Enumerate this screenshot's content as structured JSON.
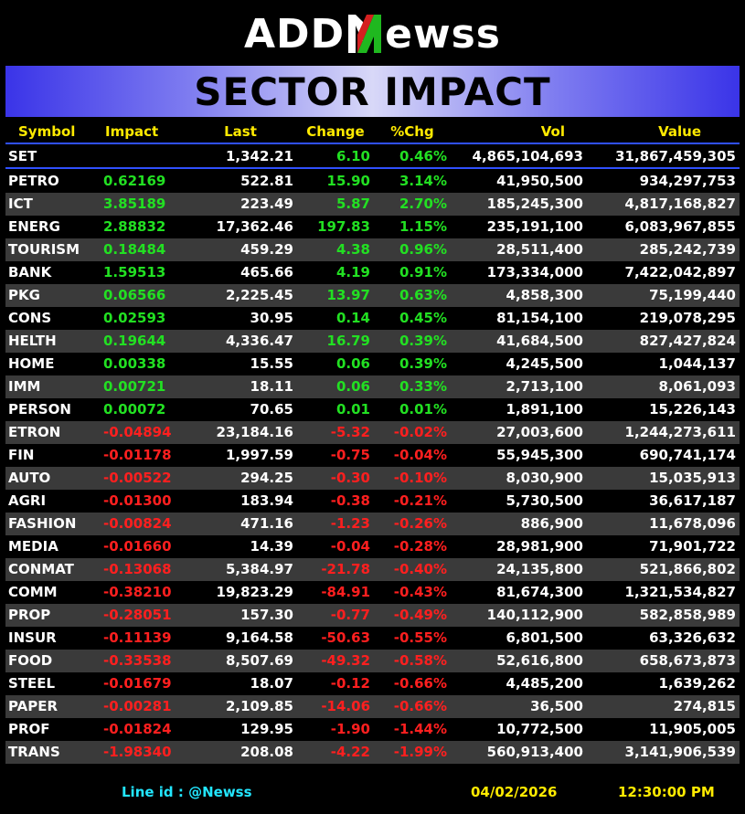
{
  "brand": {
    "logo_prefix": "ADD",
    "logo_suffix": "ewss",
    "logo_full": "ADDNewss"
  },
  "title": "SECTOR IMPACT",
  "columns": {
    "symbol": "Symbol",
    "impact": "Impact",
    "last": "Last",
    "change": "Change",
    "pct": "%Chg",
    "vol": "Vol",
    "value": "Value"
  },
  "index_row": {
    "symbol": "SET",
    "impact": "",
    "last": "1,342.21",
    "change": "6.10",
    "pct": "0.46%",
    "vol": "4,865,104,693",
    "value": "31,867,459,305",
    "direction": "up"
  },
  "sectors": [
    {
      "symbol": "PETRO",
      "impact": "0.62169",
      "last": "522.81",
      "change": "15.90",
      "pct": "3.14%",
      "vol": "41,950,500",
      "value": "934,297,753",
      "direction": "up"
    },
    {
      "symbol": "ICT",
      "impact": "3.85189",
      "last": "223.49",
      "change": "5.87",
      "pct": "2.70%",
      "vol": "185,245,300",
      "value": "4,817,168,827",
      "direction": "up"
    },
    {
      "symbol": "ENERG",
      "impact": "2.88832",
      "last": "17,362.46",
      "change": "197.83",
      "pct": "1.15%",
      "vol": "235,191,100",
      "value": "6,083,967,855",
      "direction": "up"
    },
    {
      "symbol": "TOURISM",
      "impact": "0.18484",
      "last": "459.29",
      "change": "4.38",
      "pct": "0.96%",
      "vol": "28,511,400",
      "value": "285,242,739",
      "direction": "up"
    },
    {
      "symbol": "BANK",
      "impact": "1.59513",
      "last": "465.66",
      "change": "4.19",
      "pct": "0.91%",
      "vol": "173,334,000",
      "value": "7,422,042,897",
      "direction": "up"
    },
    {
      "symbol": "PKG",
      "impact": "0.06566",
      "last": "2,225.45",
      "change": "13.97",
      "pct": "0.63%",
      "vol": "4,858,300",
      "value": "75,199,440",
      "direction": "up"
    },
    {
      "symbol": "CONS",
      "impact": "0.02593",
      "last": "30.95",
      "change": "0.14",
      "pct": "0.45%",
      "vol": "81,154,100",
      "value": "219,078,295",
      "direction": "up"
    },
    {
      "symbol": "HELTH",
      "impact": "0.19644",
      "last": "4,336.47",
      "change": "16.79",
      "pct": "0.39%",
      "vol": "41,684,500",
      "value": "827,427,824",
      "direction": "up"
    },
    {
      "symbol": "HOME",
      "impact": "0.00338",
      "last": "15.55",
      "change": "0.06",
      "pct": "0.39%",
      "vol": "4,245,500",
      "value": "1,044,137",
      "direction": "up"
    },
    {
      "symbol": "IMM",
      "impact": "0.00721",
      "last": "18.11",
      "change": "0.06",
      "pct": "0.33%",
      "vol": "2,713,100",
      "value": "8,061,093",
      "direction": "up"
    },
    {
      "symbol": "PERSON",
      "impact": "0.00072",
      "last": "70.65",
      "change": "0.01",
      "pct": "0.01%",
      "vol": "1,891,100",
      "value": "15,226,143",
      "direction": "up"
    },
    {
      "symbol": "ETRON",
      "impact": "-0.04894",
      "last": "23,184.16",
      "change": "-5.32",
      "pct": "-0.02%",
      "vol": "27,003,600",
      "value": "1,244,273,611",
      "direction": "down"
    },
    {
      "symbol": "FIN",
      "impact": "-0.01178",
      "last": "1,997.59",
      "change": "-0.75",
      "pct": "-0.04%",
      "vol": "55,945,300",
      "value": "690,741,174",
      "direction": "down"
    },
    {
      "symbol": "AUTO",
      "impact": "-0.00522",
      "last": "294.25",
      "change": "-0.30",
      "pct": "-0.10%",
      "vol": "8,030,900",
      "value": "15,035,913",
      "direction": "down"
    },
    {
      "symbol": "AGRI",
      "impact": "-0.01300",
      "last": "183.94",
      "change": "-0.38",
      "pct": "-0.21%",
      "vol": "5,730,500",
      "value": "36,617,187",
      "direction": "down"
    },
    {
      "symbol": "FASHION",
      "impact": "-0.00824",
      "last": "471.16",
      "change": "-1.23",
      "pct": "-0.26%",
      "vol": "886,900",
      "value": "11,678,096",
      "direction": "down"
    },
    {
      "symbol": "MEDIA",
      "impact": "-0.01660",
      "last": "14.39",
      "change": "-0.04",
      "pct": "-0.28%",
      "vol": "28,981,900",
      "value": "71,901,722",
      "direction": "down"
    },
    {
      "symbol": "CONMAT",
      "impact": "-0.13068",
      "last": "5,384.97",
      "change": "-21.78",
      "pct": "-0.40%",
      "vol": "24,135,800",
      "value": "521,866,802",
      "direction": "down"
    },
    {
      "symbol": "COMM",
      "impact": "-0.38210",
      "last": "19,823.29",
      "change": "-84.91",
      "pct": "-0.43%",
      "vol": "81,674,300",
      "value": "1,321,534,827",
      "direction": "down"
    },
    {
      "symbol": "PROP",
      "impact": "-0.28051",
      "last": "157.30",
      "change": "-0.77",
      "pct": "-0.49%",
      "vol": "140,112,900",
      "value": "582,858,989",
      "direction": "down"
    },
    {
      "symbol": "INSUR",
      "impact": "-0.11139",
      "last": "9,164.58",
      "change": "-50.63",
      "pct": "-0.55%",
      "vol": "6,801,500",
      "value": "63,326,632",
      "direction": "down"
    },
    {
      "symbol": "FOOD",
      "impact": "-0.33538",
      "last": "8,507.69",
      "change": "-49.32",
      "pct": "-0.58%",
      "vol": "52,616,800",
      "value": "658,673,873",
      "direction": "down"
    },
    {
      "symbol": "STEEL",
      "impact": "-0.01679",
      "last": "18.07",
      "change": "-0.12",
      "pct": "-0.66%",
      "vol": "4,485,200",
      "value": "1,639,262",
      "direction": "down"
    },
    {
      "symbol": "PAPER",
      "impact": "-0.00281",
      "last": "2,109.85",
      "change": "-14.06",
      "pct": "-0.66%",
      "vol": "36,500",
      "value": "274,815",
      "direction": "down"
    },
    {
      "symbol": "PROF",
      "impact": "-0.01824",
      "last": "129.95",
      "change": "-1.90",
      "pct": "-1.44%",
      "vol": "10,772,500",
      "value": "11,905,005",
      "direction": "down"
    },
    {
      "symbol": "TRANS",
      "impact": "-1.98340",
      "last": "208.08",
      "change": "-4.22",
      "pct": "-1.99%",
      "vol": "560,913,400",
      "value": "3,141,906,539",
      "direction": "down"
    }
  ],
  "footer": {
    "line_id": "Line id  : @Newss",
    "date": "04/02/2026",
    "time": "12:30:00 PM"
  },
  "colors": {
    "positive": "#22e022",
    "negative": "#ff1f1f",
    "header": "#ffea00",
    "accent": "#3050ff",
    "line_id": "#22e6ff"
  }
}
